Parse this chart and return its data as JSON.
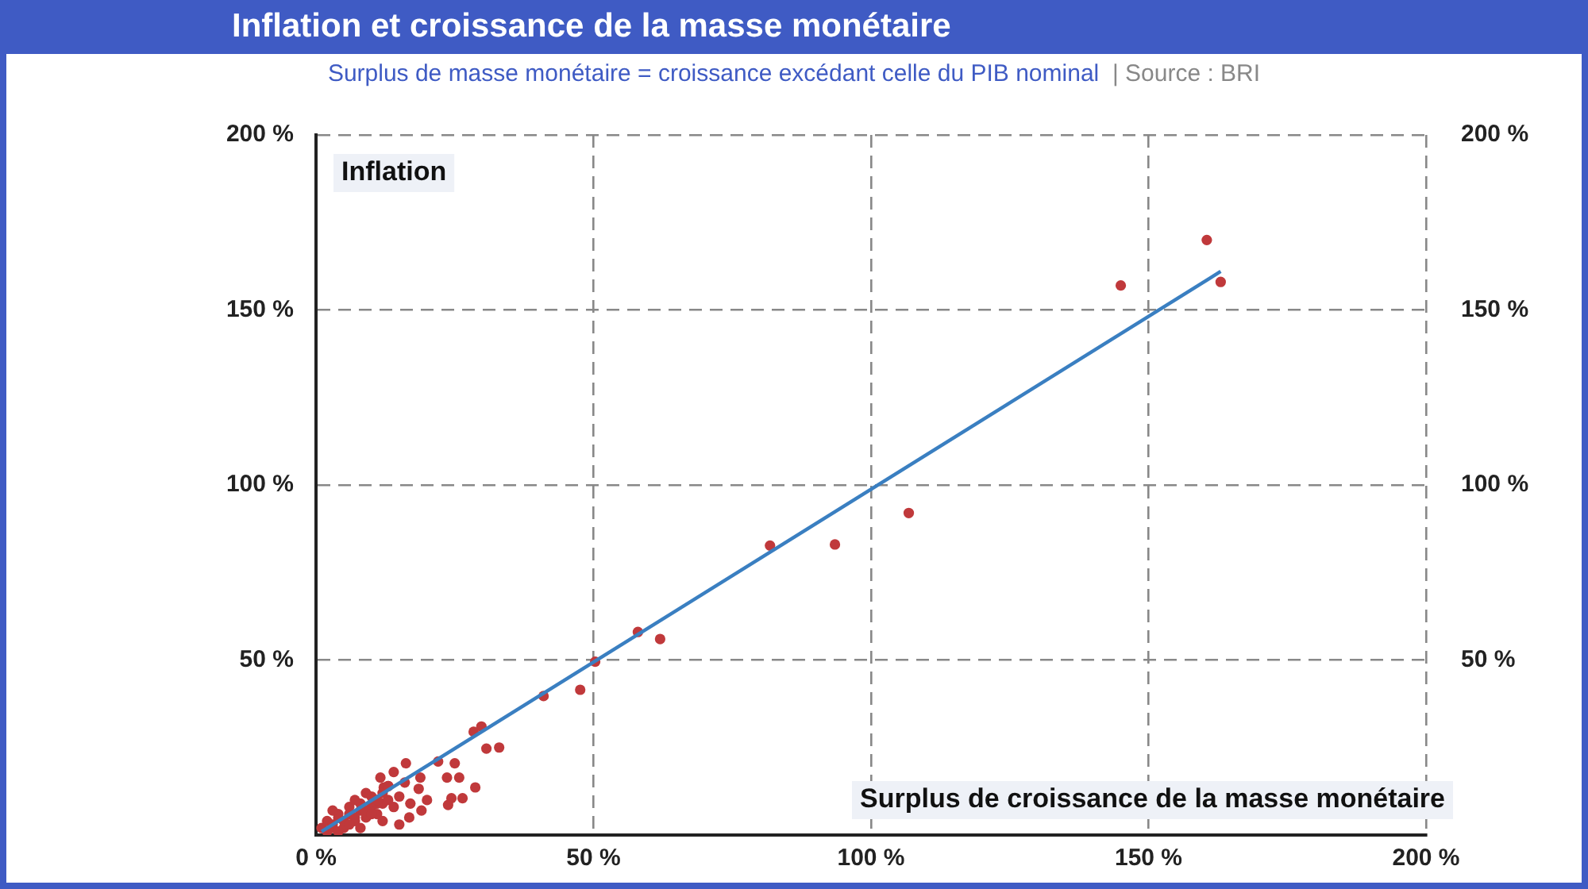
{
  "chart_data": {
    "type": "scatter",
    "title": "Inflation et croissance de la masse monétaire",
    "subtitle": "Surplus de masse monétaire = croissance excédant celle du PIB nominal",
    "annotations": [
      "|  Source : BRI"
    ],
    "xlabel": "Surplus de croissance de la masse monétaire",
    "ylabel": "Inflation",
    "xlim": [
      0,
      200
    ],
    "xticks": [
      {
        "value": 0,
        "label": "0 %"
      },
      {
        "value": 50,
        "label": "50 %"
      },
      {
        "value": 100,
        "label": "100 %"
      },
      {
        "value": 150,
        "label": "150 %"
      },
      {
        "value": 200,
        "label": "200 %"
      }
    ],
    "ylim": [
      0,
      200
    ],
    "yticks": [
      {
        "value": 50,
        "label": "50 %"
      },
      {
        "value": 100,
        "label": "100 %"
      },
      {
        "value": 150,
        "label": "150 %"
      },
      {
        "value": 200,
        "label": "200 %"
      }
    ],
    "y2lim": [
      0,
      200
    ],
    "y2ticks": [
      {
        "value": 50,
        "label": "50 %"
      },
      {
        "value": 100,
        "label": "100 %"
      },
      {
        "value": 150,
        "label": "150 %"
      },
      {
        "value": 200,
        "label": "200 %"
      }
    ],
    "grid": true,
    "marker": "circle",
    "series": [
      {
        "color": "#c0393b",
        "x": [
          160.5,
          163,
          145,
          81.8,
          93.5,
          106.8,
          58,
          62,
          50.3,
          47.6,
          41,
          28.4,
          29.8,
          30.7,
          33,
          22,
          25,
          23.6,
          25.8,
          28.7,
          26.4,
          24.4,
          23.8,
          18.5,
          18.8,
          11.6,
          14,
          16.2,
          12.2,
          16.8,
          15,
          1,
          2,
          3,
          4,
          5,
          6,
          7,
          8,
          9,
          10,
          11,
          12,
          13,
          2,
          3,
          4,
          6,
          7,
          8,
          9,
          10,
          11,
          12,
          3,
          5,
          7,
          9,
          11,
          13,
          4,
          6,
          8,
          10,
          12,
          14,
          15,
          17,
          19,
          20,
          13,
          16
        ],
        "values": [
          170,
          158,
          157,
          82.7,
          83,
          92,
          58,
          56,
          49.5,
          41.5,
          39.7,
          29.5,
          31,
          24.7,
          25,
          21,
          20.5,
          16.4,
          16.4,
          13.6,
          10.5,
          10.5,
          8.6,
          13.2,
          16.4,
          16.4,
          18,
          20.5,
          13.6,
          5,
          3,
          2,
          4,
          3,
          5,
          2,
          6,
          4,
          7,
          5,
          8,
          6,
          9,
          10,
          1,
          2,
          6,
          8,
          5,
          9,
          7,
          11,
          9,
          12,
          7,
          4,
          10,
          12,
          10,
          14,
          1,
          3,
          2,
          6,
          4,
          8,
          11,
          9,
          7,
          10,
          14,
          15
        ]
      },
      {
        "type": "line",
        "color": "#3a7fc1",
        "line_style": "solid",
        "marker": "none",
        "x": [
          1,
          163
        ],
        "values": [
          1,
          161
        ]
      }
    ]
  }
}
